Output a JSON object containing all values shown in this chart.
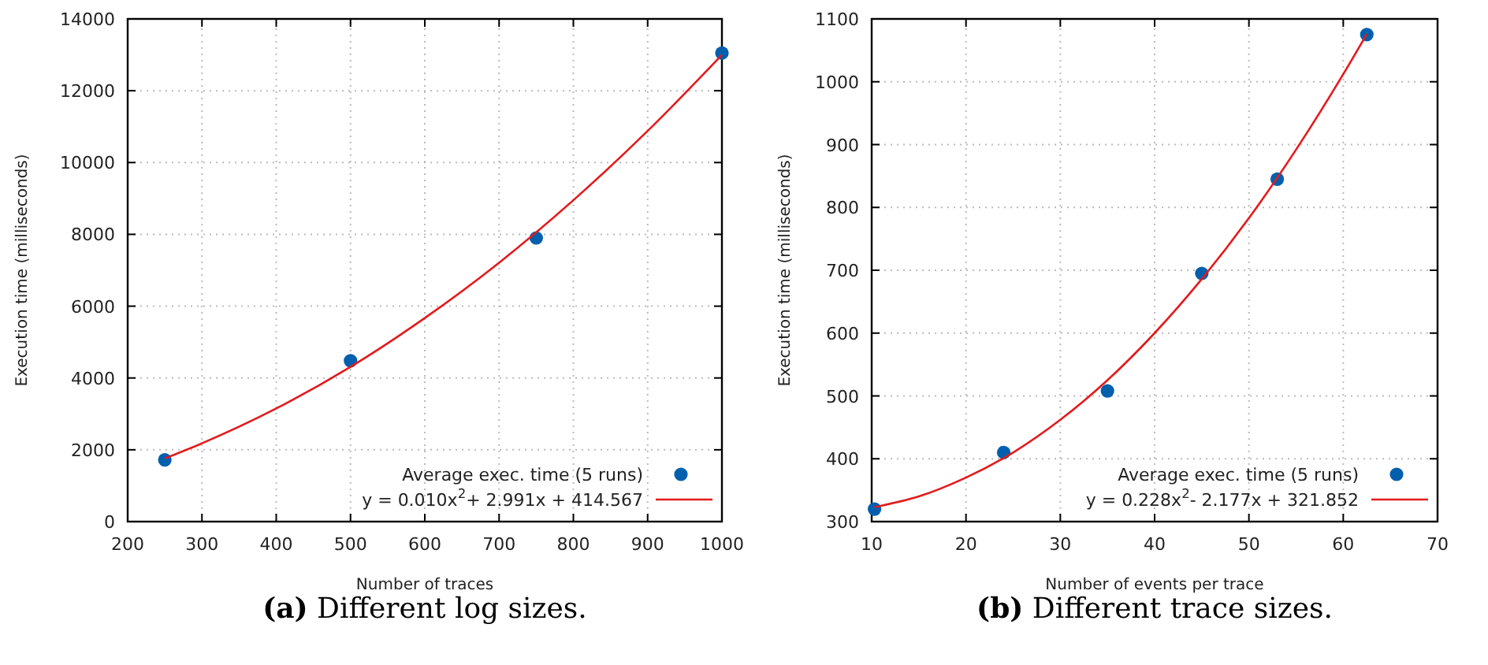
{
  "chart_data": [
    {
      "type": "scatter",
      "xlabel": "Number of traces",
      "ylabel": "Execution time (milliseconds)",
      "xlim": [
        200,
        1000
      ],
      "xticks": [
        200,
        300,
        400,
        500,
        600,
        700,
        800,
        900,
        1000
      ],
      "ylim": [
        0,
        14000
      ],
      "yticks": [
        0,
        2000,
        4000,
        6000,
        8000,
        10000,
        12000,
        14000
      ],
      "grid": true,
      "legend": "bottom right",
      "annotations": [
        "(a) Different log sizes."
      ],
      "series": [
        {
          "name": "Average exec. time (5 runs)",
          "marker": "circle",
          "color": "#0060ad",
          "x": [
            250,
            500,
            750,
            1000
          ],
          "values": [
            1720,
            4480,
            7900,
            13050
          ]
        },
        {
          "name": "y = 0.010x$^{2}$+ 2.991x + 414.567",
          "type": "line",
          "color": "#e41a1c",
          "x": [
            250,
            300,
            400,
            500,
            600,
            700,
            800,
            900,
            1000
          ],
          "values": [
            1760,
            2180,
            3150,
            4310,
            5670,
            7210,
            8950,
            10880,
            13000
          ]
        }
      ]
    },
    {
      "type": "scatter",
      "xlabel": "Number of events per trace",
      "ylabel": "Execution time (milliseconds)",
      "xlim": [
        10,
        70
      ],
      "xticks": [
        10,
        20,
        30,
        40,
        50,
        60,
        70
      ],
      "ylim": [
        300,
        1100
      ],
      "yticks": [
        300,
        400,
        500,
        600,
        700,
        800,
        900,
        1000,
        1100
      ],
      "grid": true,
      "legend": "bottom right",
      "annotations": [
        "(b) Different trace sizes."
      ],
      "series": [
        {
          "name": "Average exec. time (5 runs)",
          "marker": "circle",
          "color": "#0060ad",
          "x": [
            10.3,
            24,
            35,
            45,
            53,
            62.5
          ],
          "values": [
            320,
            410,
            508,
            695,
            845,
            1075
          ]
        },
        {
          "name": "y = 0.228x$^{2}$- 2.177x + 321.852",
          "type": "line",
          "color": "#e41a1c",
          "x": [
            10.3,
            15,
            20,
            25,
            30,
            35,
            40,
            45,
            50,
            55,
            60,
            62.5
          ],
          "values": [
            323,
            340,
            370,
            410,
            462,
            525,
            600,
            686,
            783,
            892,
            1012,
            1076
          ]
        }
      ]
    }
  ]
}
